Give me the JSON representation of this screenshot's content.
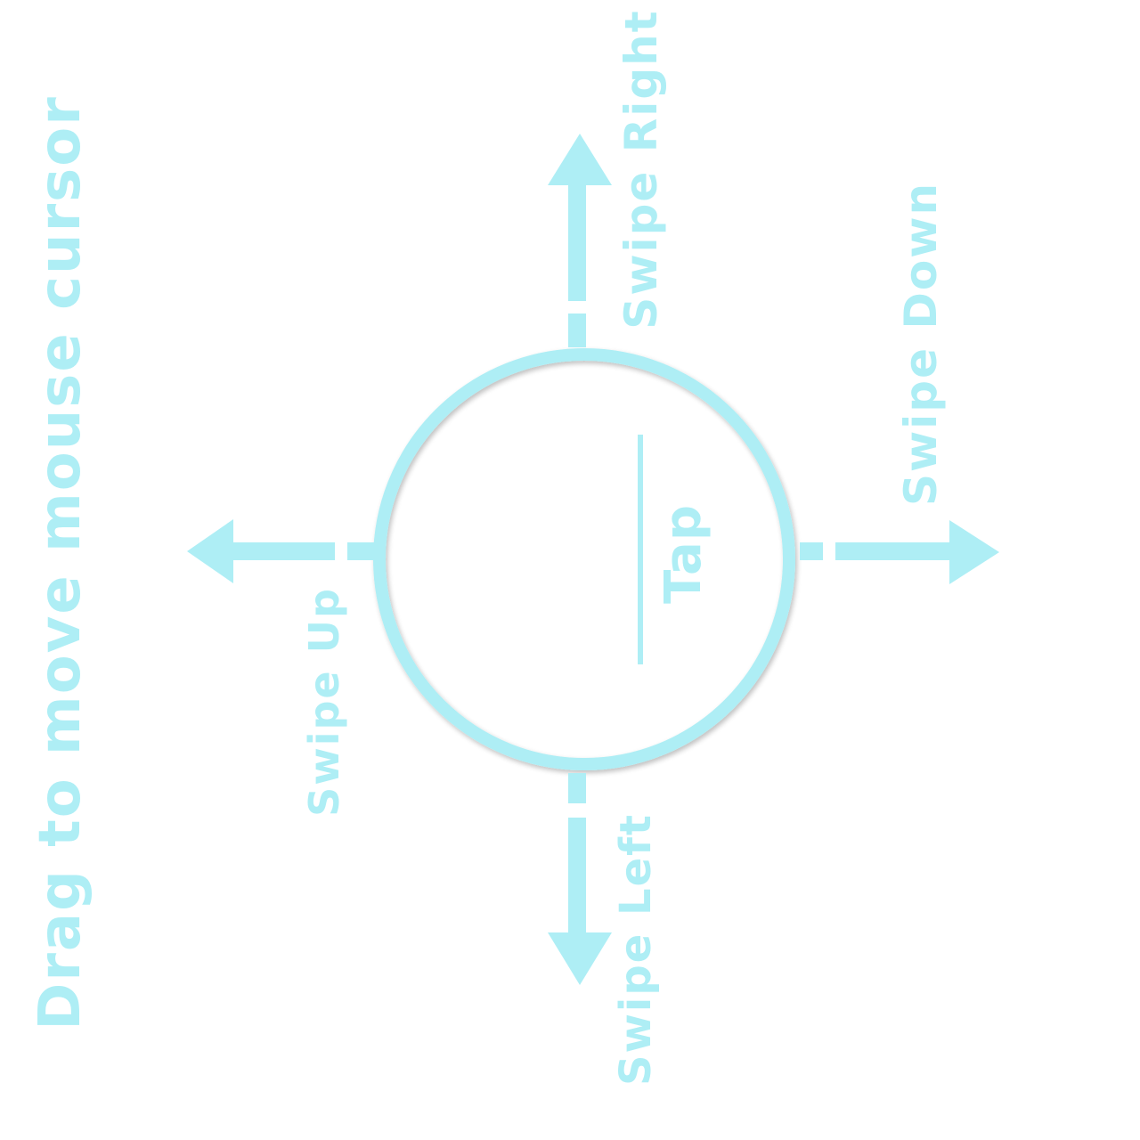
{
  "colors": {
    "accent": "#aeeef5",
    "background": "#ffffff"
  },
  "instruction": {
    "drag_label": "Drag to move mouse cursor"
  },
  "gestures": {
    "tap": "Tap",
    "swipe_right": "Swipe Right",
    "swipe_down": "Swipe Down",
    "swipe_up": "Swipe Up",
    "swipe_left": "Swipe Left"
  }
}
